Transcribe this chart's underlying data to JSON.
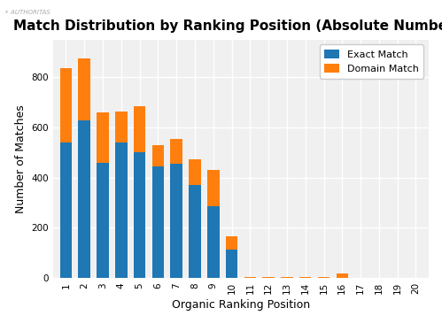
{
  "title": "Match Distribution by Ranking Position (Absolute Numbers)",
  "xlabel": "Organic Ranking Position",
  "ylabel": "Number of Matches",
  "positions": [
    1,
    2,
    3,
    4,
    5,
    6,
    7,
    8,
    9,
    10,
    11,
    12,
    13,
    14,
    15,
    16,
    17,
    18,
    19,
    20
  ],
  "exact_match": [
    540,
    630,
    460,
    540,
    500,
    445,
    455,
    370,
    285,
    115,
    0,
    0,
    0,
    0,
    0,
    0,
    0,
    0,
    0,
    0
  ],
  "domain_match": [
    295,
    245,
    200,
    125,
    185,
    85,
    100,
    105,
    145,
    50,
    3,
    3,
    3,
    3,
    3,
    18,
    0,
    0,
    0,
    0
  ],
  "exact_color": "#1f77b4",
  "domain_color": "#ff7f0e",
  "background_color": "#ffffff",
  "plot_bg_color": "#f0f0f0",
  "grid_color": "#ffffff",
  "ylim": [
    0,
    950
  ],
  "yticks": [
    0,
    200,
    400,
    600,
    800
  ],
  "bar_width": 0.65,
  "legend_labels": [
    "Exact Match",
    "Domain Match"
  ],
  "title_fontsize": 11,
  "axis_label_fontsize": 9,
  "tick_fontsize": 7.5
}
